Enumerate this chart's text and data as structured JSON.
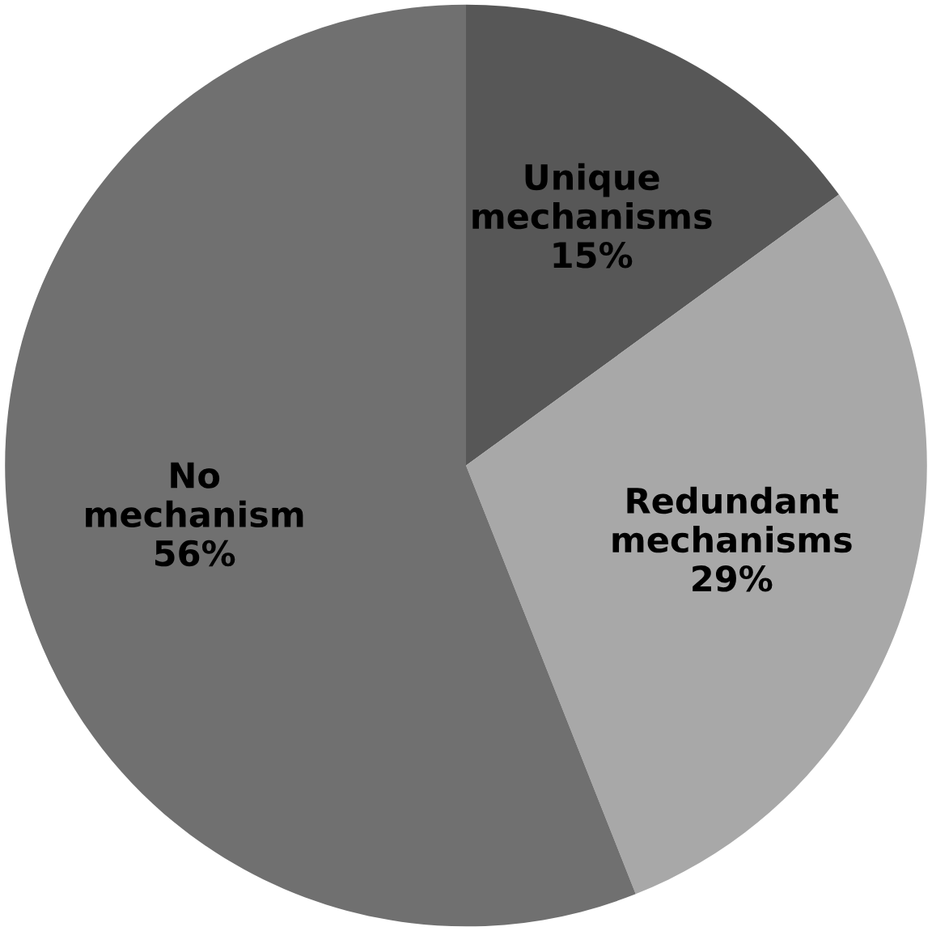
{
  "chart_data": {
    "type": "pie",
    "categories": [
      "Unique mechanisms",
      "Redundant mechanisms",
      "No mechanism"
    ],
    "values": [
      15,
      29,
      56
    ],
    "colors": [
      "#575757",
      "#a8a8a8",
      "#707070"
    ],
    "value_labels": [
      "15%",
      "29%",
      "56%"
    ]
  }
}
